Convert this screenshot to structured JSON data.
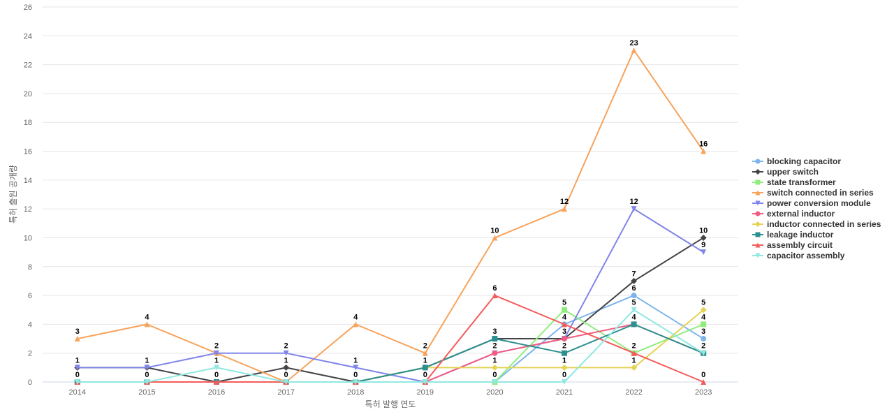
{
  "chart_data": {
    "type": "line",
    "xlabel": "특허 발행 연도",
    "ylabel": "특허 출원 공개량",
    "x": [
      "2014",
      "2015",
      "2016",
      "2017",
      "2018",
      "2019",
      "2020",
      "2021",
      "2022",
      "2023"
    ],
    "ylim": [
      0,
      26
    ],
    "yticks": [
      0,
      2,
      4,
      6,
      8,
      10,
      12,
      14,
      16,
      18,
      20,
      22,
      24,
      26
    ],
    "grid": true,
    "legend_position": "right",
    "series": [
      {
        "name": "blocking capacitor",
        "color": "#7cb5ec",
        "marker": "circle",
        "values": [
          0,
          0,
          0,
          0,
          0,
          0,
          0,
          4,
          6,
          3
        ]
      },
      {
        "name": "upper switch",
        "color": "#434348",
        "marker": "diamond",
        "values": [
          1,
          1,
          0,
          1,
          0,
          1,
          3,
          3,
          7,
          10
        ]
      },
      {
        "name": "state transformer",
        "color": "#90ed7d",
        "marker": "square",
        "values": [
          0,
          0,
          0,
          0,
          0,
          0,
          0,
          5,
          2,
          4
        ]
      },
      {
        "name": "switch connected in series",
        "color": "#f7a35c",
        "marker": "triangle",
        "values": [
          3,
          4,
          2,
          0,
          4,
          2,
          10,
          12,
          23,
          16
        ]
      },
      {
        "name": "power conversion module",
        "color": "#8085e9",
        "marker": "triangle-down",
        "values": [
          1,
          1,
          2,
          2,
          1,
          0,
          2,
          3,
          12,
          9
        ]
      },
      {
        "name": "external inductor",
        "color": "#f15c80",
        "marker": "circle",
        "values": [
          0,
          0,
          0,
          0,
          0,
          0,
          2,
          3,
          4,
          2
        ]
      },
      {
        "name": "inductor connected in series",
        "color": "#e4d354",
        "marker": "diamond",
        "values": [
          0,
          0,
          0,
          0,
          0,
          1,
          1,
          1,
          1,
          5
        ]
      },
      {
        "name": "leakage inductor",
        "color": "#2b908f",
        "marker": "square",
        "values": [
          0,
          0,
          0,
          0,
          0,
          1,
          3,
          2,
          4,
          2
        ]
      },
      {
        "name": "assembly circuit",
        "color": "#f45b5b",
        "marker": "triangle",
        "values": [
          0,
          0,
          0,
          0,
          0,
          0,
          6,
          4,
          2,
          0
        ]
      },
      {
        "name": "capacitor assembly",
        "color": "#91e8e1",
        "marker": "triangle-down",
        "values": [
          0,
          0,
          1,
          0,
          0,
          0,
          0,
          0,
          5,
          2
        ]
      }
    ],
    "data_labels": [
      {
        "x": "2014",
        "value": 3
      },
      {
        "x": "2014",
        "value": 1
      },
      {
        "x": "2014",
        "value": 0
      },
      {
        "x": "2015",
        "value": 4
      },
      {
        "x": "2015",
        "value": 1
      },
      {
        "x": "2015",
        "value": 0
      },
      {
        "x": "2016",
        "value": 2
      },
      {
        "x": "2016",
        "value": 1
      },
      {
        "x": "2016",
        "value": 0
      },
      {
        "x": "2017",
        "value": 2
      },
      {
        "x": "2017",
        "value": 1
      },
      {
        "x": "2017",
        "value": 0
      },
      {
        "x": "2018",
        "value": 4
      },
      {
        "x": "2018",
        "value": 1
      },
      {
        "x": "2018",
        "value": 0
      },
      {
        "x": "2019",
        "value": 2
      },
      {
        "x": "2019",
        "value": 1
      },
      {
        "x": "2019",
        "value": 0
      },
      {
        "x": "2020",
        "value": 10
      },
      {
        "x": "2020",
        "value": 6
      },
      {
        "x": "2020",
        "value": 3
      },
      {
        "x": "2020",
        "value": 2
      },
      {
        "x": "2020",
        "value": 1
      },
      {
        "x": "2020",
        "value": 0
      },
      {
        "x": "2021",
        "value": 12
      },
      {
        "x": "2021",
        "value": 5
      },
      {
        "x": "2021",
        "value": 4
      },
      {
        "x": "2021",
        "value": 3
      },
      {
        "x": "2021",
        "value": 2
      },
      {
        "x": "2021",
        "value": 1
      },
      {
        "x": "2021",
        "value": 0
      },
      {
        "x": "2022",
        "value": 23
      },
      {
        "x": "2022",
        "value": 12
      },
      {
        "x": "2022",
        "value": 7
      },
      {
        "x": "2022",
        "value": 6
      },
      {
        "x": "2022",
        "value": 5
      },
      {
        "x": "2022",
        "value": 4
      },
      {
        "x": "2022",
        "value": 2
      },
      {
        "x": "2022",
        "value": 1
      },
      {
        "x": "2023",
        "value": 16
      },
      {
        "x": "2023",
        "value": 10
      },
      {
        "x": "2023",
        "value": 9
      },
      {
        "x": "2023",
        "value": 5
      },
      {
        "x": "2023",
        "value": 4
      },
      {
        "x": "2023",
        "value": 3
      },
      {
        "x": "2023",
        "value": 2
      },
      {
        "x": "2023",
        "value": 0
      }
    ]
  }
}
